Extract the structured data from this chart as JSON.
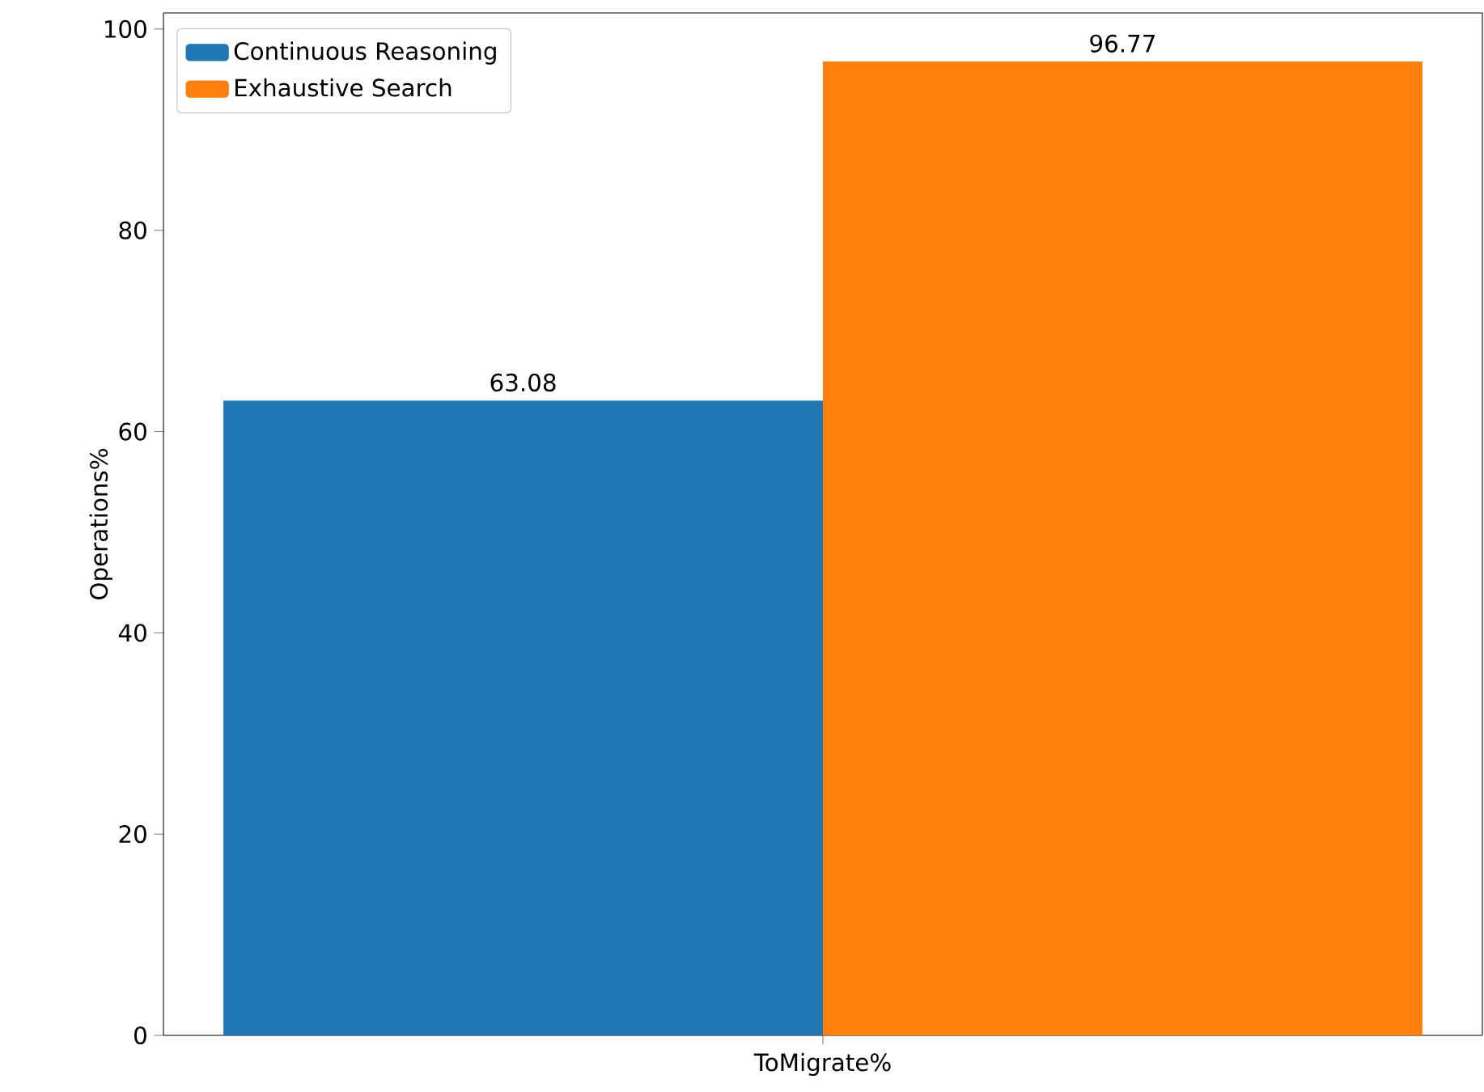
{
  "chart_data": {
    "type": "bar",
    "categories": [
      "ToMigrate%"
    ],
    "ylabel": "Operations%",
    "series": [
      {
        "name": "Continuous Reasoning",
        "color": "#1f77b4",
        "values": [
          63.08
        ]
      },
      {
        "name": "Exhaustive Search",
        "color": "#ff7f0e",
        "values": [
          96.77
        ]
      }
    ],
    "ylim": [
      0,
      101.6
    ],
    "yticks": [
      0,
      20,
      40,
      60,
      80,
      100
    ],
    "data_labels": true,
    "legend": "top left"
  }
}
